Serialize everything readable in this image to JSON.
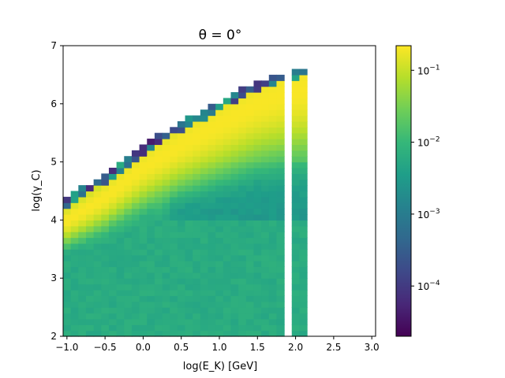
{
  "chart_data": [
    {
      "type": "heatmap",
      "title": "θ = 0°",
      "xlabel": "log(E_K) [GeV]",
      "ylabel": "log(γ_C)",
      "xlim": [
        -1.05,
        3.05
      ],
      "ylim": [
        2,
        7
      ],
      "xticks": [
        -1.0,
        -0.5,
        0.0,
        0.5,
        1.0,
        1.5,
        2.0,
        2.5,
        3.0
      ],
      "xtick_labels": [
        "−1.0",
        "−0.5",
        "0.0",
        "0.5",
        "1.0",
        "1.5",
        "2.0",
        "2.5",
        "3.0"
      ],
      "yticks": [
        2,
        3,
        4,
        5,
        6,
        7
      ],
      "ytick_labels": [
        "2",
        "3",
        "4",
        "5",
        "6",
        "7"
      ],
      "bin_width_x": 0.1,
      "bin_height_y": 0.1,
      "filled_x_ranges": [
        [
          -1.05,
          1.85
        ],
        [
          1.95,
          2.15
        ]
      ],
      "ridge_upper_edge": [
        [
          -1.0,
          4.35
        ],
        [
          -0.5,
          4.75
        ],
        [
          0.0,
          5.25
        ],
        [
          0.5,
          5.65
        ],
        [
          1.0,
          6.0
        ],
        [
          1.5,
          6.35
        ],
        [
          1.8,
          6.5
        ],
        [
          2.1,
          6.6
        ]
      ],
      "ridge_peak_value": 0.2,
      "background_value": 0.006,
      "grid": false,
      "colorbar": {
        "colormap": "viridis",
        "scale": "log",
        "range": [
          2e-05,
          0.22
        ],
        "ticks": [
          0.0001,
          0.001,
          0.01,
          0.1
        ],
        "tick_mantissa": "10",
        "tick_exponents": [
          "−4",
          "−3",
          "−2",
          "−1"
        ]
      }
    }
  ],
  "colors": {
    "viridis_stops": [
      "#440154",
      "#482878",
      "#3e4989",
      "#31688e",
      "#26828e",
      "#1f9e89",
      "#35b779",
      "#6ece58",
      "#b5de2b",
      "#fde725"
    ]
  }
}
